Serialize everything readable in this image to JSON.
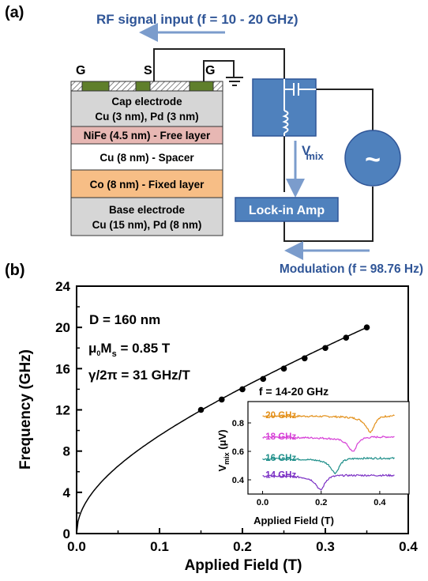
{
  "panel_a": {
    "label": "(a)",
    "rf_input": "RF signal input (f = 10 - 20 GHz)",
    "contacts": [
      "G",
      "S",
      "G"
    ],
    "layers": [
      {
        "lines": [
          "Cap electrode",
          "Cu (3 nm), Pd (3 nm)"
        ],
        "color": "#d6d6d6"
      },
      {
        "lines": [
          "NiFe (4.5 nm) - Free layer"
        ],
        "color": "#e7b7b3"
      },
      {
        "lines": [
          "Cu (8 nm) - Spacer"
        ],
        "color": "#ffffff"
      },
      {
        "lines": [
          "Co (8 nm) - Fixed layer"
        ],
        "color": "#f7be86"
      },
      {
        "lines": [
          "Base electrode",
          "Cu (15 nm), Pd (8 nm)"
        ],
        "color": "#d6d6d6"
      }
    ],
    "vmix_v": "V",
    "vmix_sub": "mix",
    "lockin": "Lock-in Amp",
    "ac_symbol": "~",
    "modulation": "Modulation (f = 98.76 Hz)",
    "colors": {
      "blue_box": "#4f81bd",
      "arrow": "#7b9ccc",
      "text_blue": "#2f5597",
      "contact": "#5f7f2b"
    }
  },
  "panel_b": {
    "label": "(b)",
    "annotations": {
      "d": "D = 160 nm",
      "mu": "μ",
      "mu_sub": "0",
      "ms": "M",
      "ms_sub": "s",
      "ms_val": " = 0.85 T",
      "gamma": "γ/2π = 31 GHz/T"
    },
    "inset_title": "f = 14-20 GHz",
    "inset_ylabel_v": "V",
    "inset_ylabel_sub": "mix",
    "inset_ylabel_unit": " (μV)",
    "inset_xlabel": "Applied Field (T)",
    "inset_xticks": [
      "0.0",
      "0.2",
      "0.4"
    ],
    "inset_yticks": [
      "0.4",
      "0.6",
      "0.8"
    ]
  },
  "chart_data": [
    {
      "type": "scatter",
      "xlabel": "Applied Field (T)",
      "ylabel": "Frequency (GHz)",
      "xlim": [
        0.0,
        0.4
      ],
      "ylim": [
        0,
        24
      ],
      "xticks": [
        "0.0",
        "0.1",
        "0.2",
        "0.3",
        "0.4"
      ],
      "yticks": [
        "0",
        "4",
        "8",
        "12",
        "16",
        "20",
        "24"
      ],
      "points": {
        "x": [
          0.15,
          0.175,
          0.2,
          0.225,
          0.25,
          0.275,
          0.3,
          0.325,
          0.35
        ],
        "y": [
          12,
          13,
          14,
          15,
          16,
          17,
          18,
          19,
          20
        ]
      },
      "fit_curve": "Kittel fit, γ/2π = 31 GHz/T, μ0Ms = 0.85 T"
    },
    {
      "type": "line",
      "title": "f = 14-20 GHz",
      "xlabel": "Applied Field (T)",
      "ylabel": "Vmix (μV)",
      "xlim": [
        -0.05,
        0.5
      ],
      "ylim": [
        0.3,
        0.95
      ],
      "series": [
        {
          "name": "20 GHz",
          "color": "#e3901a",
          "baseline": 0.85,
          "dip_field": 0.37,
          "dip_value": 0.74
        },
        {
          "name": "18 GHz",
          "color": "#d63fd6",
          "baseline": 0.7,
          "dip_field": 0.31,
          "dip_value": 0.6
        },
        {
          "name": "16 GHz",
          "color": "#1f8f8a",
          "baseline": 0.55,
          "dip_field": 0.25,
          "dip_value": 0.45
        },
        {
          "name": "14 GHz",
          "color": "#7a2fc4",
          "baseline": 0.43,
          "dip_field": 0.2,
          "dip_value": 0.33
        }
      ]
    }
  ]
}
